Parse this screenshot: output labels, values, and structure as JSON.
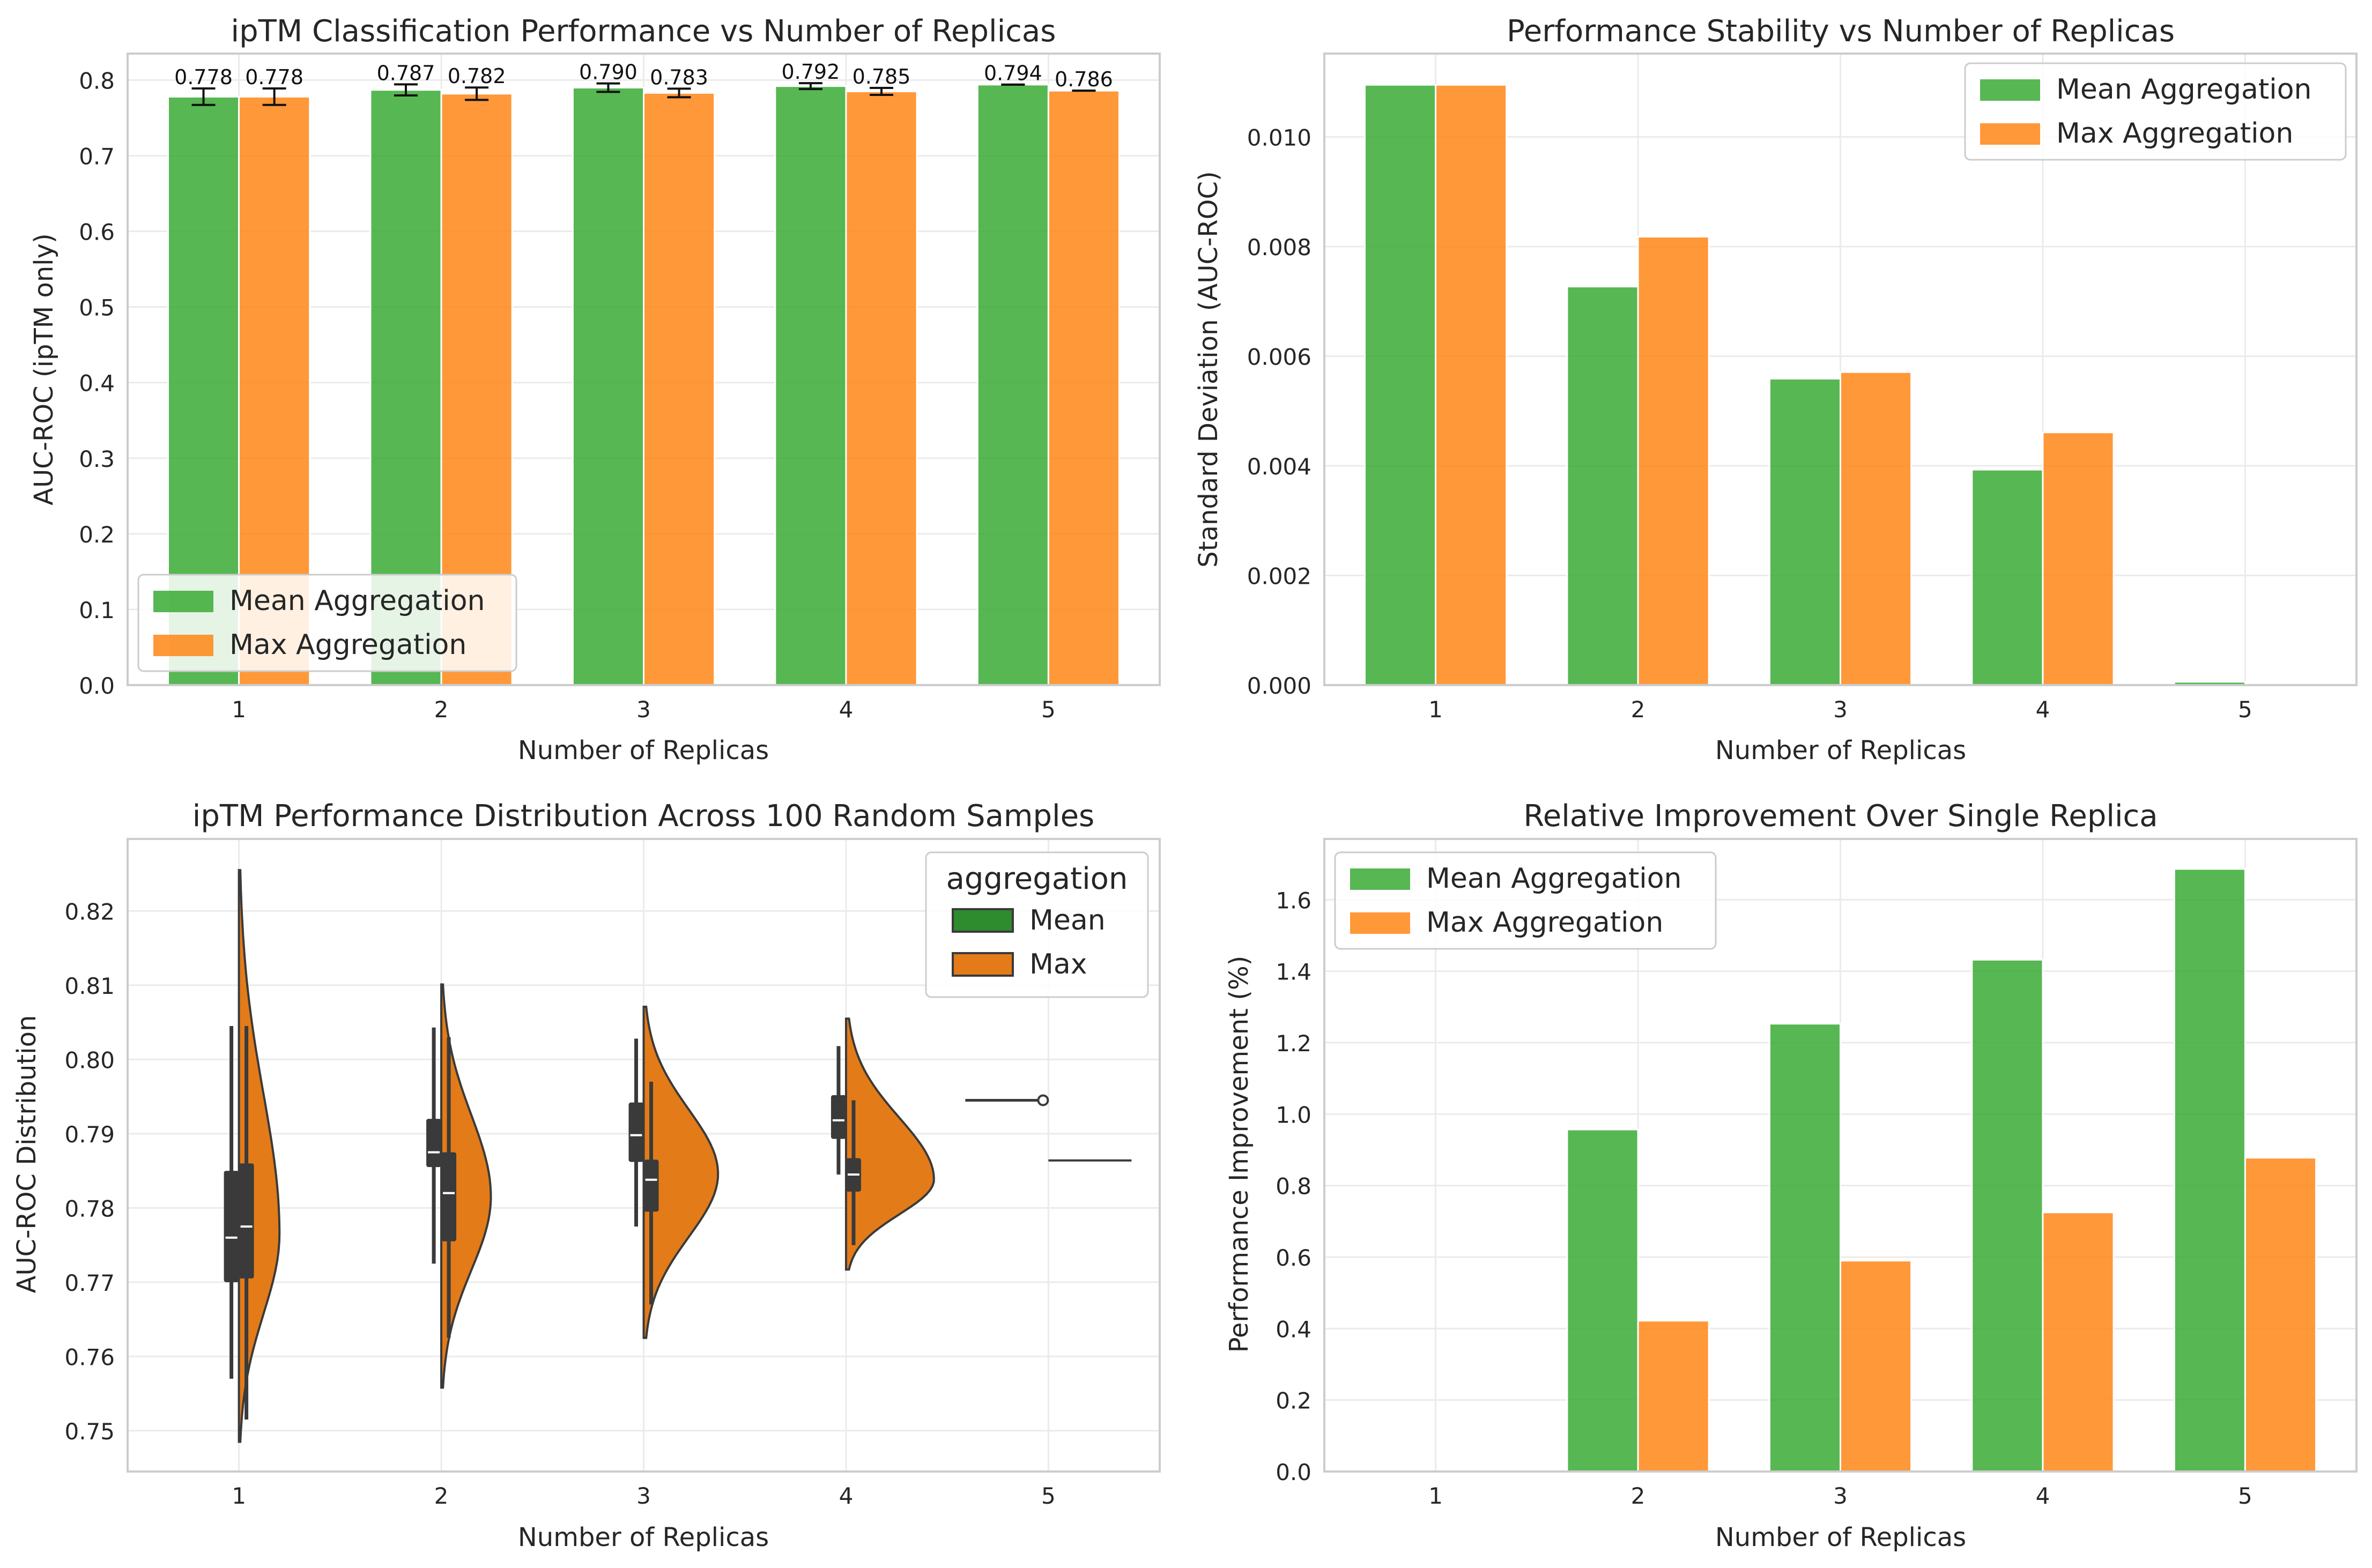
{
  "colors": {
    "mean": "#3aaa35",
    "max": "#ff8616",
    "mean_dark": "#2e8b2e",
    "max_dark": "#e37b18",
    "grid": "#ebebeb",
    "spine": "#cccccc",
    "text": "#262626"
  },
  "chart_data": [
    {
      "type": "bar",
      "title": "ipTM Classification Performance vs Number of Replicas",
      "xlabel": "Number of Replicas",
      "ylabel": "AUC-ROC (ipTM only)",
      "categories": [
        "1",
        "2",
        "3",
        "4",
        "5"
      ],
      "ylim": [
        0,
        0.835
      ],
      "yticks": [
        0.0,
        0.1,
        0.2,
        0.3,
        0.4,
        0.5,
        0.6,
        0.7,
        0.8
      ],
      "ytick_labels": [
        "0.0",
        "0.1",
        "0.2",
        "0.3",
        "0.4",
        "0.5",
        "0.6",
        "0.7",
        "0.8"
      ],
      "series": [
        {
          "name": "Mean Aggregation",
          "values": [
            0.778,
            0.787,
            0.79,
            0.792,
            0.794
          ],
          "errors": [
            0.0109,
            0.0073,
            0.0056,
            0.0039,
            0.0001
          ],
          "labels": [
            "0.778",
            "0.787",
            "0.790",
            "0.792",
            "0.794"
          ]
        },
        {
          "name": "Max Aggregation",
          "values": [
            0.778,
            0.782,
            0.783,
            0.785,
            0.786
          ],
          "errors": [
            0.0109,
            0.0082,
            0.0057,
            0.0046,
            0.0
          ],
          "labels": [
            "0.778",
            "0.782",
            "0.783",
            "0.785",
            "0.786"
          ]
        }
      ],
      "legend": "lower-left"
    },
    {
      "type": "bar",
      "title": "Performance Stability vs Number of Replicas",
      "xlabel": "Number of Replicas",
      "ylabel": "Standard Deviation (AUC-ROC)",
      "categories": [
        "1",
        "2",
        "3",
        "4",
        "5"
      ],
      "ylim": [
        0,
        0.01152
      ],
      "yticks": [
        0.0,
        0.002,
        0.004,
        0.006,
        0.008,
        0.01
      ],
      "ytick_labels": [
        "0.000",
        "0.002",
        "0.004",
        "0.006",
        "0.008",
        "0.010"
      ],
      "series": [
        {
          "name": "Mean Aggregation",
          "values": [
            0.01095,
            0.00727,
            0.00559,
            0.00393,
            6e-05
          ]
        },
        {
          "name": "Max Aggregation",
          "values": [
            0.01095,
            0.00818,
            0.00571,
            0.00461,
            0.0
          ]
        }
      ],
      "legend": "top-right"
    },
    {
      "type": "violin",
      "title": "ipTM Performance Distribution Across 100 Random Samples",
      "xlabel": "Number of Replicas",
      "ylabel": "AUC-ROC Distribution",
      "categories": [
        "1",
        "2",
        "3",
        "4",
        "5"
      ],
      "ylim": [
        0.7445,
        0.8297
      ],
      "yticks": [
        0.75,
        0.76,
        0.77,
        0.78,
        0.79,
        0.8,
        0.81,
        0.82
      ],
      "ytick_labels": [
        "0.75",
        "0.76",
        "0.77",
        "0.78",
        "0.79",
        "0.80",
        "0.81",
        "0.82"
      ],
      "legend_title": "aggregation",
      "legend_entries": [
        "Mean",
        "Max"
      ],
      "legend": "top-right",
      "series": [
        {
          "name": "Mean",
          "side": "left",
          "stats": [
            {
              "min": 0.757,
              "q1": 0.77,
              "median": 0.776,
              "q3": 0.785,
              "max": 0.8045,
              "mode": 0.776,
              "peak_width": 0.0,
              "kde_min": 0.757,
              "kde_max": 0.8045
            },
            {
              "min": 0.7725,
              "q1": 0.7855,
              "median": 0.7875,
              "q3": 0.792,
              "max": 0.8043,
              "mode": 0.7875,
              "peak_width": 0.0,
              "kde_min": 0.7725,
              "kde_max": 0.8043
            },
            {
              "min": 0.7775,
              "q1": 0.7862,
              "median": 0.7898,
              "q3": 0.7942,
              "max": 0.8028,
              "mode": 0.7898,
              "peak_width": 0.0,
              "kde_min": 0.7775,
              "kde_max": 0.8028
            },
            {
              "min": 0.7845,
              "q1": 0.7893,
              "median": 0.7918,
              "q3": 0.7952,
              "max": 0.8018,
              "mode": 0.7918,
              "peak_width": 0.0,
              "kde_min": 0.7845,
              "kde_max": 0.8018
            },
            {
              "min": 0.7943,
              "q1": 0.7944,
              "median": 0.7945,
              "q3": 0.7946,
              "max": 0.7947,
              "mode": 0.7945,
              "peak_width": 0.0,
              "kde_min": 0.7943,
              "kde_max": 0.7947
            }
          ]
        },
        {
          "name": "Max",
          "side": "right",
          "stats": [
            {
              "min": 0.7515,
              "q1": 0.7705,
              "median": 0.7775,
              "q3": 0.786,
              "max": 0.8045,
              "mode": 0.7765,
              "peak_width": 0.18,
              "kde_min": 0.7485,
              "kde_max": 0.8255
            },
            {
              "min": 0.7625,
              "q1": 0.7755,
              "median": 0.782,
              "q3": 0.7875,
              "max": 0.803,
              "mode": 0.7815,
              "peak_width": 0.22,
              "kde_min": 0.7558,
              "kde_max": 0.8101
            },
            {
              "min": 0.767,
              "q1": 0.7795,
              "median": 0.7838,
              "q3": 0.7865,
              "max": 0.797,
              "mode": 0.7846,
              "peak_width": 0.33,
              "kde_min": 0.7625,
              "kde_max": 0.8071
            },
            {
              "min": 0.775,
              "q1": 0.7822,
              "median": 0.7845,
              "q3": 0.7867,
              "max": 0.7945,
              "mode": 0.7838,
              "peak_width": 0.39,
              "kde_min": 0.7717,
              "kde_max": 0.8055
            },
            {
              "min": 0.7864,
              "q1": 0.7864,
              "median": 0.7864,
              "q3": 0.7864,
              "max": 0.7864,
              "mode": 0.7864,
              "peak_width": 0.44,
              "kde_min": 0.7864,
              "kde_max": 0.7864
            }
          ]
        }
      ]
    },
    {
      "type": "bar",
      "title": "Relative Improvement Over Single Replica",
      "xlabel": "Number of Replicas",
      "ylabel": "Performance Improvement (%)",
      "categories": [
        "1",
        "2",
        "3",
        "4",
        "5"
      ],
      "ylim": [
        0,
        1.77
      ],
      "yticks": [
        0.0,
        0.2,
        0.4,
        0.6,
        0.8,
        1.0,
        1.2,
        1.4,
        1.6
      ],
      "ytick_labels": [
        "0.0",
        "0.2",
        "0.4",
        "0.6",
        "0.8",
        "1.0",
        "1.2",
        "1.4",
        "1.6"
      ],
      "series": [
        {
          "name": "Mean Aggregation",
          "values": [
            0.0,
            0.957,
            1.253,
            1.432,
            1.686
          ]
        },
        {
          "name": "Max Aggregation",
          "values": [
            0.0,
            0.422,
            0.59,
            0.725,
            0.878
          ]
        }
      ],
      "legend": "top-left"
    }
  ]
}
